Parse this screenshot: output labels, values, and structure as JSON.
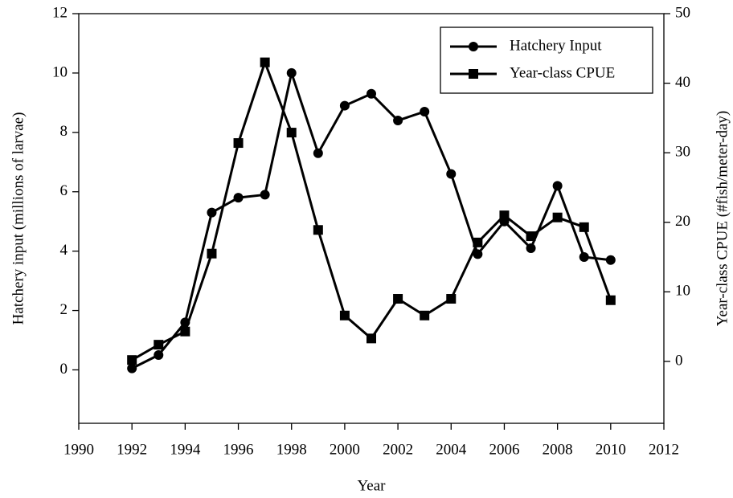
{
  "chart_data": {
    "type": "line",
    "xlabel": "Year",
    "ylabel": "Hatchery input (millions of larvae)",
    "y2label": "Year-class CPUE (#fish/meter-day)",
    "x": [
      1992,
      1993,
      1994,
      1995,
      1996,
      1997,
      1998,
      1999,
      2000,
      2001,
      2002,
      2003,
      2004,
      2005,
      2006,
      2007,
      2008,
      2009,
      2010
    ],
    "series": [
      {
        "name": "Hatchery Input",
        "color": "#000000",
        "marker": "circle",
        "axis": "y",
        "values": [
          0.05,
          0.5,
          1.6,
          5.3,
          5.8,
          5.9,
          10.0,
          7.3,
          8.9,
          9.3,
          8.4,
          8.7,
          6.6,
          3.9,
          5.0,
          4.1,
          6.2,
          3.8,
          3.7
        ]
      },
      {
        "name": "Year-class CPUE",
        "color": "#000000",
        "marker": "square",
        "axis": "y2",
        "values": [
          0.2,
          2.4,
          4.3,
          15.5,
          31.4,
          43.0,
          32.9,
          18.9,
          6.6,
          3.3,
          9.0,
          6.6,
          9.0,
          17.1,
          21.0,
          18.0,
          20.7,
          19.3,
          8.8
        ]
      }
    ],
    "xlim": [
      1990,
      2012
    ],
    "xticks": [
      1990,
      1992,
      1994,
      1996,
      1998,
      2000,
      2002,
      2004,
      2006,
      2008,
      2010,
      2012
    ],
    "ylim": [
      -1.8,
      12
    ],
    "yticks": [
      0,
      2,
      4,
      6,
      8,
      10,
      12
    ],
    "y2lim": [
      -8.9,
      50
    ],
    "y2ticks": [
      0,
      10,
      20,
      30,
      40,
      50
    ],
    "legend": "upper right"
  }
}
